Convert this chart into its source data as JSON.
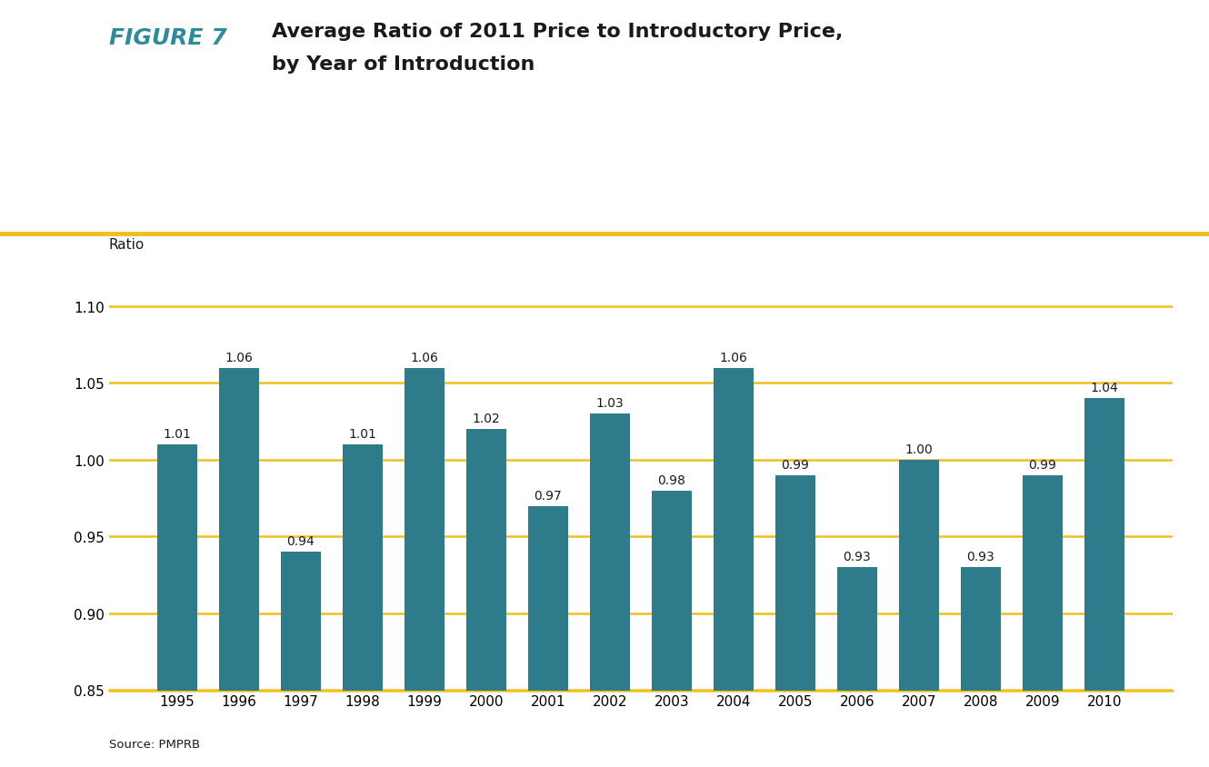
{
  "years": [
    1995,
    1996,
    1997,
    1998,
    1999,
    2000,
    2001,
    2002,
    2003,
    2004,
    2005,
    2006,
    2007,
    2008,
    2009,
    2010
  ],
  "values": [
    1.01,
    1.06,
    0.94,
    1.01,
    1.06,
    1.02,
    0.97,
    1.03,
    0.98,
    1.06,
    0.99,
    0.93,
    1.0,
    0.93,
    0.99,
    1.04
  ],
  "bar_color": "#2e7b8c",
  "figure_label": "FIGURE 7",
  "figure_label_color": "#2e8b9a",
  "title_line1": "Average Ratio of 2011 Price to Introductory Price,",
  "title_line2": "by Year of Introduction",
  "title_color": "#1a1a1a",
  "ratio_label": "Ratio",
  "ylim_min": 0.85,
  "ylim_max": 1.13,
  "yticks": [
    0.85,
    0.9,
    0.95,
    1.0,
    1.05,
    1.1
  ],
  "grid_color": "#f0c020",
  "grid_linewidth": 1.8,
  "source_text": "Source: PMPRB",
  "background_color": "#ffffff",
  "bar_label_fontsize": 10,
  "tick_fontsize": 11,
  "ratio_label_fontsize": 11,
  "title_fontsize": 16,
  "figure_label_fontsize": 18
}
